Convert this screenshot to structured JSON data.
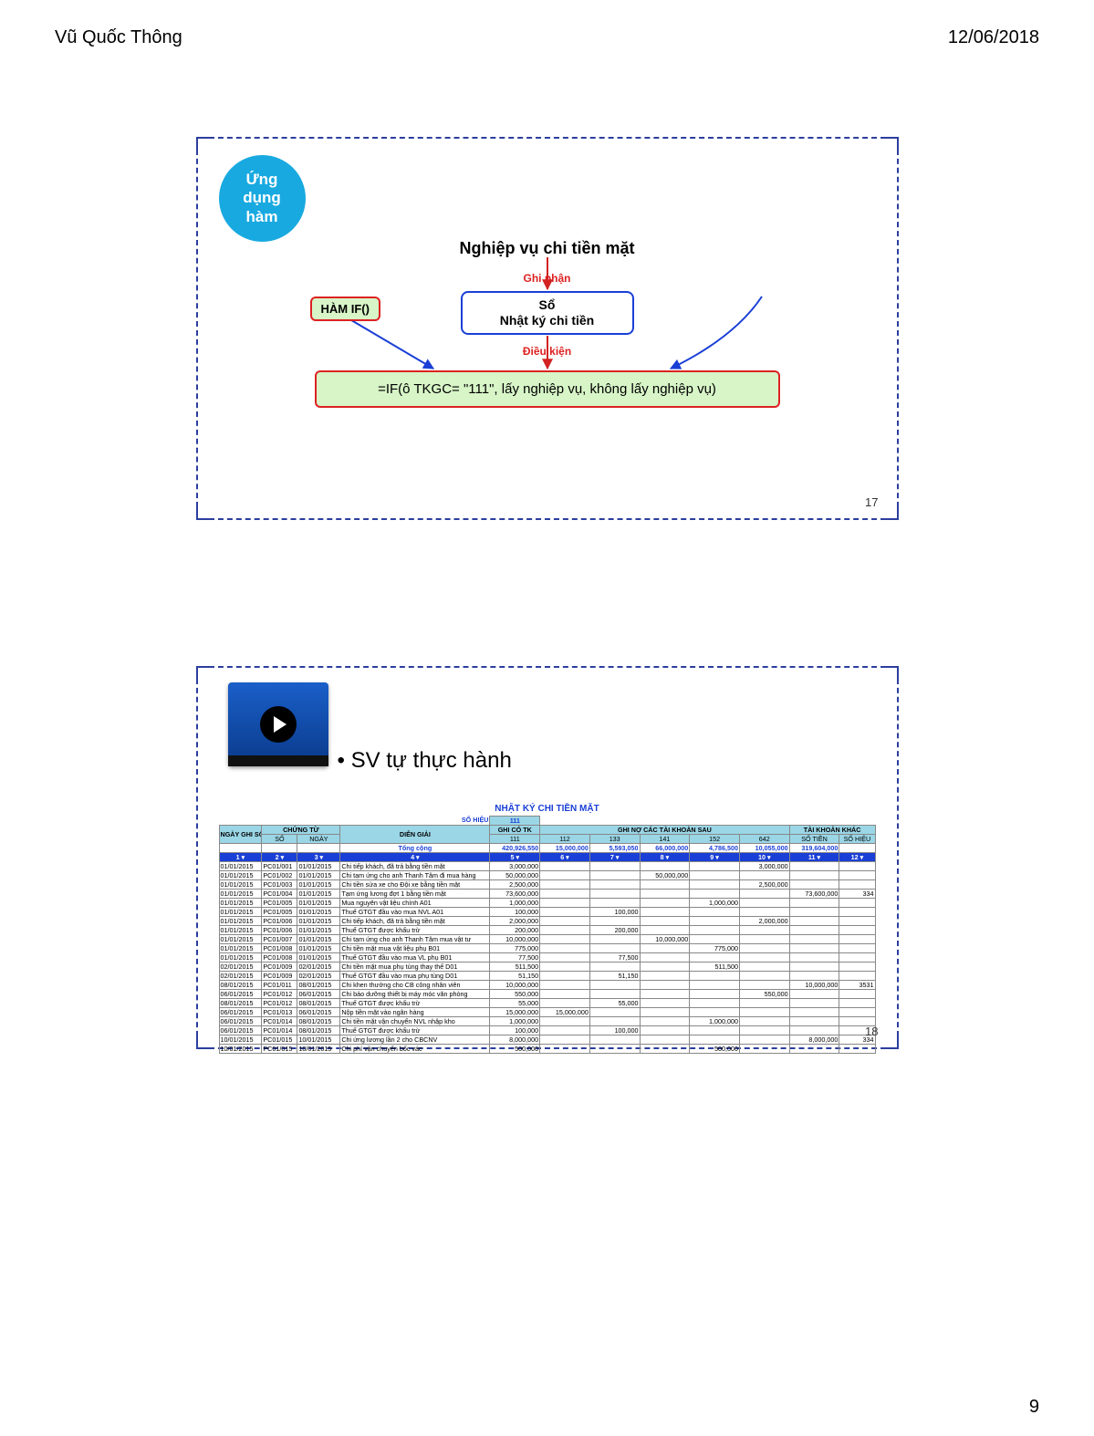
{
  "header": {
    "author": "Vũ Quốc Thông",
    "date": "12/06/2018"
  },
  "footer": {
    "page": "9"
  },
  "slide17": {
    "page_num": "17",
    "badge_bg": "#18a9e0",
    "badge_line1": "Ứng",
    "badge_line2": "dụng",
    "badge_line3": "hàm",
    "title": "Nghiệp vụ chi tiền mặt",
    "ghi_nhan": "Ghi nhận",
    "so_box_line1": "Sổ",
    "so_box_line2": "Nhật ký chi tiền",
    "dieu_kien": "Điều kiện",
    "ham_if": "HÀM IF()",
    "formula": "=IF(ô TKGC= \"111\", lấy nghiệp vụ, không lấy nghiệp vụ)",
    "arrow_color_red": "#d22222",
    "arrow_color_blue": "#1a3fd6"
  },
  "slide18": {
    "page_num": "18",
    "bullet_text": "SV tự thực hành",
    "sheet": {
      "title": "NHẬT KÝ CHI TIỀN MẶT",
      "so_hieu_label": "SỔ HIỆU",
      "so_hieu_val": "111",
      "hdr_bg": "#9ad6e6",
      "colnum_bg": "#1a3fd6",
      "headers": {
        "ngay_ghi_so": "NGÀY GHI SỔ",
        "chung_tu": "CHỨNG TỪ",
        "so": "SỐ",
        "ngay": "NGÀY",
        "dien_giai": "DIỄN GIẢI",
        "ghi_co_tk": "GHI CÓ TK",
        "tk111": "111",
        "ghi_no": "GHI NỢ CÁC TÀI KHOẢN SAU",
        "c112": "112",
        "c133": "133",
        "c141": "141",
        "c152": "152",
        "c642": "642",
        "tkk": "TÀI KHOẢN KHÁC",
        "so_tien": "SỐ TIỀN",
        "so_hieu2": "SỐ HIỆU"
      },
      "tong_cong": "Tổng cộng",
      "totals": [
        "420,926,550",
        "15,000,000",
        "5,593,050",
        "66,000,000",
        "4,786,500",
        "10,055,000",
        "319,604,000",
        ""
      ],
      "colnums": [
        "1",
        "2",
        "3",
        "4",
        "5",
        "6",
        "7",
        "8",
        "9",
        "10",
        "11",
        "12"
      ],
      "rows": [
        {
          "d": "01/01/2015",
          "s": "PC01/001",
          "n": "01/01/2015",
          "dg": "Chi tiếp khách, đã trả bằng tiền mặt",
          "v111": "3,000,000",
          "c112": "",
          "c133": "",
          "c141": "",
          "c152": "",
          "c642": "3,000,000",
          "st": "",
          "sh": ""
        },
        {
          "d": "01/01/2015",
          "s": "PC01/002",
          "n": "01/01/2015",
          "dg": "Chi tạm ứng cho anh Thanh Tâm đi mua hàng",
          "v111": "50,000,000",
          "c112": "",
          "c133": "",
          "c141": "50,000,000",
          "c152": "",
          "c642": "",
          "st": "",
          "sh": ""
        },
        {
          "d": "01/01/2015",
          "s": "PC01/003",
          "n": "01/01/2015",
          "dg": "Chi tiền sửa xe cho Đội xe bằng tiền mặt",
          "v111": "2,500,000",
          "c112": "",
          "c133": "",
          "c141": "",
          "c152": "",
          "c642": "2,500,000",
          "st": "",
          "sh": ""
        },
        {
          "d": "01/01/2015",
          "s": "PC01/004",
          "n": "01/01/2015",
          "dg": "Tạm ứng lương đợt 1 bằng tiền mặt",
          "v111": "73,600,000",
          "c112": "",
          "c133": "",
          "c141": "",
          "c152": "",
          "c642": "",
          "st": "73,600,000",
          "sh": "334"
        },
        {
          "d": "01/01/2015",
          "s": "PC01/005",
          "n": "01/01/2015",
          "dg": "Mua nguyên vật liệu chính A01",
          "v111": "1,000,000",
          "c112": "",
          "c133": "",
          "c141": "",
          "c152": "1,000,000",
          "c642": "",
          "st": "",
          "sh": ""
        },
        {
          "d": "01/01/2015",
          "s": "PC01/005",
          "n": "01/01/2015",
          "dg": "Thuế GTGT đầu vào mua NVL A01",
          "v111": "100,000",
          "c112": "",
          "c133": "100,000",
          "c141": "",
          "c152": "",
          "c642": "",
          "st": "",
          "sh": ""
        },
        {
          "d": "01/01/2015",
          "s": "PC01/006",
          "n": "01/01/2015",
          "dg": "Chi tiếp khách, đã trả bằng tiền mặt",
          "v111": "2,000,000",
          "c112": "",
          "c133": "",
          "c141": "",
          "c152": "",
          "c642": "2,000,000",
          "st": "",
          "sh": ""
        },
        {
          "d": "01/01/2015",
          "s": "PC01/006",
          "n": "01/01/2015",
          "dg": "Thuế GTGT được khấu trừ",
          "v111": "200,000",
          "c112": "",
          "c133": "200,000",
          "c141": "",
          "c152": "",
          "c642": "",
          "st": "",
          "sh": ""
        },
        {
          "d": "01/01/2015",
          "s": "PC01/007",
          "n": "01/01/2015",
          "dg": "Chi tạm ứng cho anh Thanh Tâm mua vật tư",
          "v111": "10,000,000",
          "c112": "",
          "c133": "",
          "c141": "10,000,000",
          "c152": "",
          "c642": "",
          "st": "",
          "sh": ""
        },
        {
          "d": "01/01/2015",
          "s": "PC01/008",
          "n": "01/01/2015",
          "dg": "Chi tiền mặt mua vật liệu phụ B01",
          "v111": "775,000",
          "c112": "",
          "c133": "",
          "c141": "",
          "c152": "775,000",
          "c642": "",
          "st": "",
          "sh": ""
        },
        {
          "d": "01/01/2015",
          "s": "PC01/008",
          "n": "01/01/2015",
          "dg": "Thuế GTGT đầu vào mua VL phụ B01",
          "v111": "77,500",
          "c112": "",
          "c133": "77,500",
          "c141": "",
          "c152": "",
          "c642": "",
          "st": "",
          "sh": ""
        },
        {
          "d": "02/01/2015",
          "s": "PC01/009",
          "n": "02/01/2015",
          "dg": "Chi tiền mặt mua phụ tùng thay thế D01",
          "v111": "511,500",
          "c112": "",
          "c133": "",
          "c141": "",
          "c152": "511,500",
          "c642": "",
          "st": "",
          "sh": ""
        },
        {
          "d": "02/01/2015",
          "s": "PC01/009",
          "n": "02/01/2015",
          "dg": "Thuế GTGT đầu vào mua phụ tùng D01",
          "v111": "51,150",
          "c112": "",
          "c133": "51,150",
          "c141": "",
          "c152": "",
          "c642": "",
          "st": "",
          "sh": ""
        },
        {
          "d": "08/01/2015",
          "s": "PC01/011",
          "n": "08/01/2015",
          "dg": "Chi khen thưởng cho CB công nhân viên",
          "v111": "10,000,000",
          "c112": "",
          "c133": "",
          "c141": "",
          "c152": "",
          "c642": "",
          "st": "10,000,000",
          "sh": "3531"
        },
        {
          "d": "06/01/2015",
          "s": "PC01/012",
          "n": "06/01/2015",
          "dg": "Chi bảo dưỡng thiết bị máy móc văn phòng",
          "v111": "550,000",
          "c112": "",
          "c133": "",
          "c141": "",
          "c152": "",
          "c642": "550,000",
          "st": "",
          "sh": ""
        },
        {
          "d": "08/01/2015",
          "s": "PC01/012",
          "n": "08/01/2015",
          "dg": "Thuế GTGT được khấu trừ",
          "v111": "55,000",
          "c112": "",
          "c133": "55,000",
          "c141": "",
          "c152": "",
          "c642": "",
          "st": "",
          "sh": ""
        },
        {
          "d": "06/01/2015",
          "s": "PC01/013",
          "n": "06/01/2015",
          "dg": "Nộp tiền mặt vào ngân hàng",
          "v111": "15,000,000",
          "c112": "15,000,000",
          "c133": "",
          "c141": "",
          "c152": "",
          "c642": "",
          "st": "",
          "sh": ""
        },
        {
          "d": "06/01/2015",
          "s": "PC01/014",
          "n": "08/01/2015",
          "dg": "Chi tiền mặt vận chuyển NVL nhập kho",
          "v111": "1,000,000",
          "c112": "",
          "c133": "",
          "c141": "",
          "c152": "1,000,000",
          "c642": "",
          "st": "",
          "sh": ""
        },
        {
          "d": "06/01/2015",
          "s": "PC01/014",
          "n": "08/01/2015",
          "dg": "Thuế GTGT được khấu trừ",
          "v111": "100,000",
          "c112": "",
          "c133": "100,000",
          "c141": "",
          "c152": "",
          "c642": "",
          "st": "",
          "sh": ""
        },
        {
          "d": "10/01/2015",
          "s": "PC01/015",
          "n": "10/01/2015",
          "dg": "Chi ứng lương lần 2 cho CBCNV",
          "v111": "8,000,000",
          "c112": "",
          "c133": "",
          "c141": "",
          "c152": "",
          "c642": "",
          "st": "8,000,000",
          "sh": "334"
        },
        {
          "d": "10/01/2015",
          "s": "PC01/015",
          "n": "10/01/2015",
          "dg": "Chi phí vận chuyển bốc vác",
          "v111": "500,000",
          "c112": "",
          "c133": "",
          "c141": "",
          "c152": "500,000",
          "c642": "",
          "st": "",
          "sh": ""
        }
      ]
    }
  }
}
